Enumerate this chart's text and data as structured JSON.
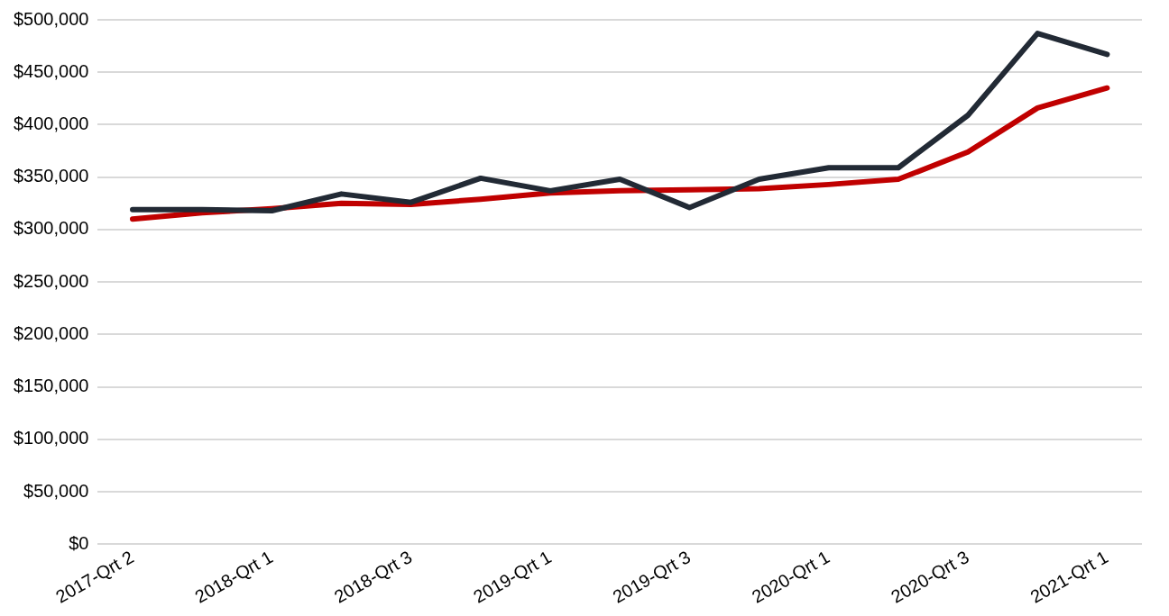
{
  "chart_data": {
    "type": "line",
    "categories": [
      "2017-Qrt 2",
      null,
      "2018-Qrt 1",
      null,
      "2018-Qrt 3",
      null,
      "2019-Qrt 1",
      null,
      "2019-Qrt 3",
      null,
      "2020-Qrt 1",
      null,
      "2020-Qrt 3",
      null,
      "2021-Qrt 1"
    ],
    "series": [
      {
        "color": "#222a35",
        "values": [
          319000,
          319000,
          318000,
          334000,
          326000,
          349000,
          337000,
          348000,
          321000,
          348000,
          359000,
          359000,
          409000,
          487000,
          467000
        ]
      },
      {
        "color": "#c00000",
        "values": [
          310000,
          316000,
          320000,
          325000,
          324000,
          329000,
          335000,
          337000,
          338000,
          339000,
          343000,
          348000,
          374000,
          416000,
          435000
        ]
      }
    ],
    "ylim": [
      0,
      500000
    ],
    "yticks": [
      {
        "value": 0,
        "label": "$0"
      },
      {
        "value": 50000,
        "label": "$50,000"
      },
      {
        "value": 100000,
        "label": "$100,000"
      },
      {
        "value": 150000,
        "label": "$150,000"
      },
      {
        "value": 200000,
        "label": "$200,000"
      },
      {
        "value": 250000,
        "label": "$250,000"
      },
      {
        "value": 300000,
        "label": "$300,000"
      },
      {
        "value": 350000,
        "label": "$350,000"
      },
      {
        "value": 400000,
        "label": "$400,000"
      },
      {
        "value": 450000,
        "label": "$450,000"
      },
      {
        "value": 500000,
        "label": "$500,000"
      }
    ],
    "grid": "y",
    "legend": false,
    "marker": "none",
    "line_style": "solid"
  }
}
